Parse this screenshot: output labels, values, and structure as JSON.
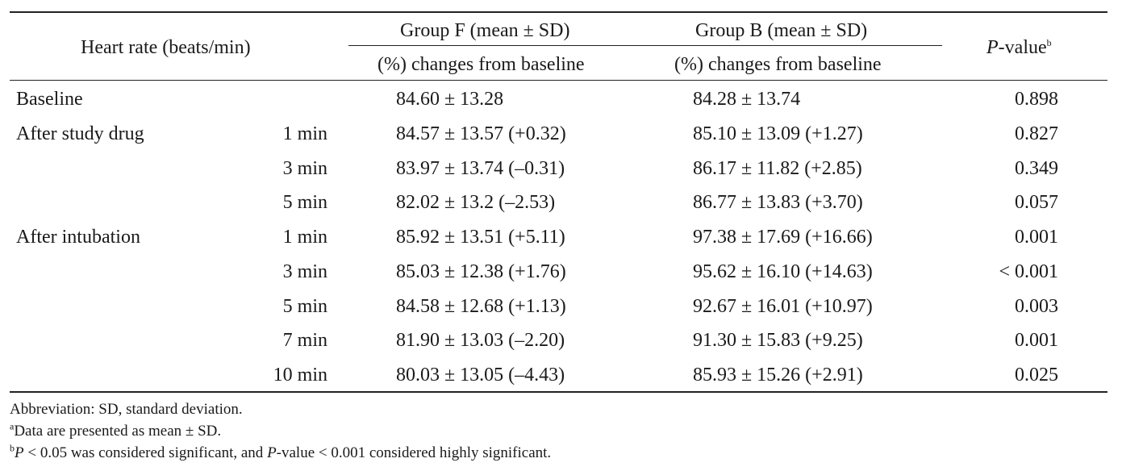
{
  "header": {
    "heart_rate": "Heart rate (beats/min)",
    "group_f": "Group F (mean ± SD)",
    "group_b": "Group B (mean ± SD)",
    "changes_f": "(%) changes from baseline",
    "changes_b": "(%) changes from baseline",
    "p_value_italic": "P",
    "p_value_rest": "-value",
    "p_value_sup": "b"
  },
  "rows": [
    {
      "label": "Baseline",
      "time": "",
      "group_f": "84.60 ± 13.28",
      "group_b": "84.28 ± 13.74",
      "p": "0.898"
    },
    {
      "label": "After study drug",
      "time": "1 min",
      "group_f": "84.57 ± 13.57 (+0.32)",
      "group_b": "85.10 ± 13.09 (+1.27)",
      "p": "0.827"
    },
    {
      "label": "",
      "time": "3 min",
      "group_f": "83.97 ± 13.74 (–0.31)",
      "group_b": "86.17 ± 11.82 (+2.85)",
      "p": "0.349"
    },
    {
      "label": "",
      "time": "5 min",
      "group_f": "82.02 ± 13.2 (–2.53)",
      "group_b": "86.77 ± 13.83 (+3.70)",
      "p": "0.057"
    },
    {
      "label": "After intubation",
      "time": "1 min",
      "group_f": "85.92 ± 13.51 (+5.11)",
      "group_b": "97.38 ± 17.69 (+16.66)",
      "p": "0.001"
    },
    {
      "label": "",
      "time": "3 min",
      "group_f": "85.03 ± 12.38 (+1.76)",
      "group_b": "95.62 ± 16.10 (+14.63)",
      "p": "< 0.001"
    },
    {
      "label": "",
      "time": "5 min",
      "group_f": "84.58 ± 12.68 (+1.13)",
      "group_b": "92.67 ± 16.01 (+10.97)",
      "p": "0.003"
    },
    {
      "label": "",
      "time": "7 min",
      "group_f": "81.90 ± 13.03 (–2.20)",
      "group_b": "91.30 ± 15.83 (+9.25)",
      "p": "0.001"
    },
    {
      "label": "",
      "time": "10 min",
      "group_f": "80.03 ± 13.05 (–4.43)",
      "group_b": "85.93 ± 15.26 (+2.91)",
      "p": "0.025"
    }
  ],
  "footnotes": {
    "abbreviation": "Abbreviation: SD, standard deviation.",
    "a_sup": "a",
    "a_text": "Data are presented as mean ± SD.",
    "b_sup": "b",
    "b_p": "P",
    "b_text1": " < 0.05 was considered significant, and ",
    "b_p2": "P",
    "b_text2": "-value < 0.001 considered highly significant."
  }
}
